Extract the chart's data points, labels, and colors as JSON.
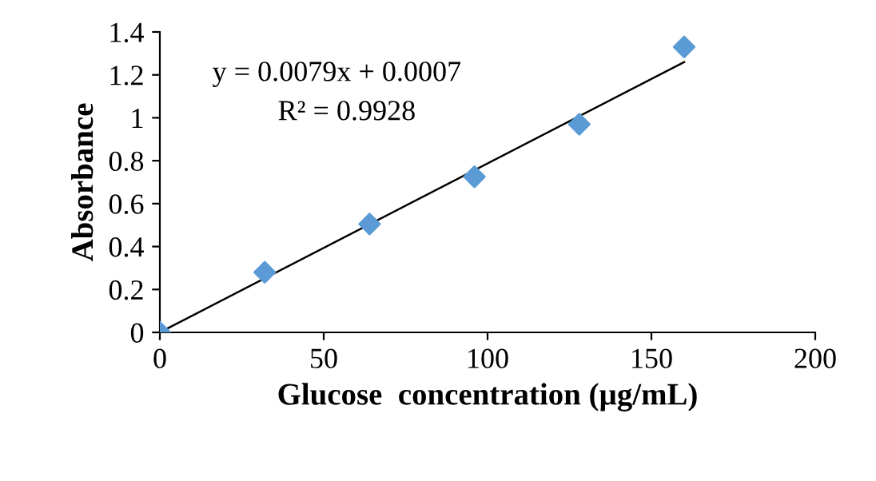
{
  "chart_data": {
    "type": "scatter",
    "xlabel": "Glucose  concentration (µg/mL)",
    "ylabel": "Absorbance",
    "series": [
      {
        "color": "#5b9bd5",
        "marker": "diamond",
        "x": [
          0,
          32,
          64,
          96,
          128,
          160
        ],
        "values": [
          0,
          0.28,
          0.505,
          0.725,
          0.97,
          1.33
        ]
      },
      {
        "type": "line",
        "color": "#000000",
        "line_style": "solid",
        "marker": "none",
        "x": [
          0,
          160
        ],
        "values": [
          0,
          1.26
        ]
      }
    ],
    "annotations": [
      "y = 0.0079x + 0.0007",
      "R² = 0.9928"
    ],
    "xlim": [
      0,
      200
    ],
    "xticks": [
      0,
      50,
      100,
      150,
      200
    ],
    "ylim": [
      0,
      1.4
    ],
    "yticks": [
      0,
      0.2,
      0.4,
      0.6,
      0.8,
      1,
      1.2,
      1.4
    ],
    "grid": false,
    "legend": false
  }
}
